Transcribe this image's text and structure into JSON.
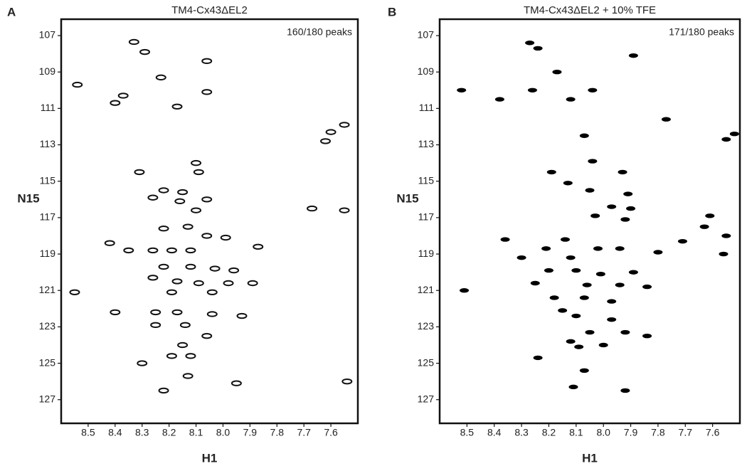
{
  "chart_data": [
    {
      "type": "scatter",
      "panel_label": "A",
      "title": "TM4-Cx43ΔEL2",
      "annotation": "160/180 peaks",
      "xlabel": "H1",
      "ylabel": "N15",
      "marker": "contour",
      "color": "#111111",
      "xlim": [
        8.6,
        7.5
      ],
      "ylim": [
        128.3,
        106.1
      ],
      "xticks": [
        8.5,
        8.4,
        8.3,
        8.2,
        8.1,
        {
          "value": 8,
          "label": "8.0"
        },
        7.9,
        7.8,
        7.7,
        7.6
      ],
      "yticks": [
        107,
        109,
        111,
        113,
        115,
        117,
        119,
        121,
        123,
        125,
        127
      ],
      "x": [
        8.33,
        8.29,
        8.06,
        8.54,
        8.23,
        8.37,
        8.4,
        8.06,
        8.17,
        7.55,
        7.6,
        7.62,
        8.31,
        8.1,
        8.09,
        8.22,
        8.15,
        8.26,
        8.16,
        8.06,
        8.1,
        8.22,
        8.13,
        8.06,
        7.99,
        8.42,
        8.35,
        8.26,
        8.19,
        8.12,
        7.87,
        8.22,
        8.12,
        8.03,
        7.96,
        8.26,
        8.17,
        8.09,
        7.98,
        7.89,
        8.19,
        8.04,
        8.55,
        8.4,
        8.25,
        8.17,
        8.04,
        7.93,
        8.25,
        8.14,
        8.06,
        8.15,
        8.19,
        8.12,
        8.3,
        8.13,
        8.22,
        7.95,
        7.54,
        7.67,
        7.55
      ],
      "values": [
        107.35,
        107.9,
        108.4,
        109.7,
        109.3,
        110.3,
        110.7,
        110.1,
        110.9,
        111.9,
        112.3,
        112.8,
        114.5,
        114.0,
        114.5,
        115.5,
        115.6,
        115.9,
        116.1,
        116.0,
        116.6,
        117.6,
        117.5,
        118.0,
        118.1,
        118.4,
        118.8,
        118.8,
        118.8,
        118.8,
        118.6,
        119.7,
        119.7,
        119.8,
        119.9,
        120.3,
        120.5,
        120.6,
        120.6,
        120.6,
        121.1,
        121.1,
        121.1,
        122.2,
        122.2,
        122.2,
        122.3,
        122.4,
        122.9,
        122.9,
        123.5,
        124.0,
        124.6,
        124.6,
        125.0,
        125.7,
        126.5,
        126.1,
        126.0,
        116.5,
        116.6
      ]
    },
    {
      "type": "scatter",
      "panel_label": "B",
      "title": "TM4-Cx43ΔEL2 + 10% TFE",
      "annotation": "171/180 peaks",
      "xlabel": "H1",
      "ylabel": "N15",
      "marker": "filled",
      "color": "#000000",
      "xlim": [
        8.6,
        7.5
      ],
      "ylim": [
        128.3,
        106.1
      ],
      "xticks": [
        8.5,
        8.4,
        8.3,
        8.2,
        8.1,
        {
          "value": 8,
          "label": "8.0"
        },
        7.9,
        7.8,
        7.7,
        7.6
      ],
      "yticks": [
        107,
        109,
        111,
        113,
        115,
        117,
        119,
        121,
        123,
        125,
        127
      ],
      "x": [
        8.27,
        8.24,
        7.89,
        8.17,
        8.52,
        8.26,
        8.38,
        8.12,
        8.04,
        7.77,
        7.52,
        7.55,
        8.07,
        8.19,
        8.04,
        7.93,
        8.13,
        8.05,
        7.91,
        7.97,
        7.9,
        8.03,
        7.92,
        7.61,
        7.71,
        7.63,
        7.55,
        8.36,
        8.14,
        8.21,
        8.02,
        7.94,
        7.8,
        7.56,
        8.3,
        8.12,
        8.2,
        8.1,
        8.01,
        7.89,
        8.25,
        8.06,
        7.94,
        7.84,
        8.51,
        8.18,
        8.07,
        7.97,
        8.15,
        8.1,
        7.97,
        8.05,
        7.92,
        8.12,
        8.09,
        8.0,
        7.84,
        8.24,
        8.07,
        8.11,
        7.92
      ],
      "values": [
        107.4,
        107.7,
        108.1,
        109.0,
        110.0,
        110.0,
        110.5,
        110.5,
        110.0,
        111.6,
        112.4,
        112.7,
        112.5,
        114.5,
        113.9,
        114.5,
        115.1,
        115.5,
        115.7,
        116.4,
        116.5,
        116.9,
        117.1,
        116.9,
        118.3,
        117.5,
        118.0,
        118.2,
        118.2,
        118.7,
        118.7,
        118.7,
        118.9,
        119.0,
        119.2,
        119.2,
        119.9,
        119.9,
        120.1,
        120.0,
        120.6,
        120.7,
        120.7,
        120.8,
        121.0,
        121.4,
        121.4,
        121.6,
        122.1,
        122.4,
        122.6,
        123.3,
        123.3,
        123.8,
        124.1,
        124.0,
        123.5,
        124.7,
        125.4,
        126.3,
        126.5
      ]
    }
  ]
}
